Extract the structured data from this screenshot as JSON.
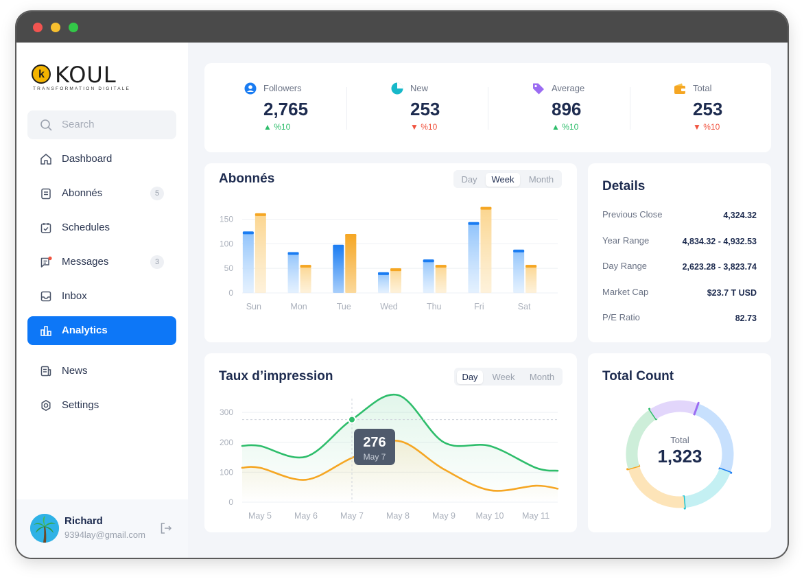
{
  "brand": {
    "name": "KOUL",
    "tagline": "TRANSFORMATION DIGITALE",
    "initial": "k"
  },
  "search": {
    "placeholder": "Search"
  },
  "nav": [
    {
      "label": "Dashboard",
      "badge": null
    },
    {
      "label": "Abonnés",
      "badge": "5"
    },
    {
      "label": "Schedules",
      "badge": null
    },
    {
      "label": "Messages",
      "badge": "3"
    },
    {
      "label": "Inbox",
      "badge": null
    },
    {
      "label": "Analytics",
      "badge": null
    },
    {
      "label": "News",
      "badge": null
    },
    {
      "label": "Settings",
      "badge": null
    }
  ],
  "user": {
    "name": "Richard",
    "email": "9394lay@gmail.com"
  },
  "stats": [
    {
      "label": "Followers",
      "value": "2,765",
      "change": "%10",
      "direction": "up",
      "icon": "user-circle-icon"
    },
    {
      "label": "New",
      "value": "253",
      "change": "%10",
      "direction": "down",
      "icon": "pie-icon"
    },
    {
      "label": "Average",
      "value": "896",
      "direction": "up",
      "change": "%10",
      "icon": "tag-icon"
    },
    {
      "label": "Total",
      "value": "253",
      "change": "%10",
      "direction": "down",
      "icon": "wallet-icon"
    }
  ],
  "colors": {
    "accent": "#0d77f7",
    "up": "#2ebd6b",
    "down": "#f0533f",
    "orange": "#f5a623",
    "green": "#2ebd6b",
    "blue": "#1a7cf2"
  },
  "bar_chart": {
    "title": "Abonnés",
    "tabs": [
      "Day",
      "Week",
      "Month"
    ],
    "active_tab": "Week"
  },
  "details": {
    "title": "Details",
    "rows": [
      {
        "label": "Previous Close",
        "value": "4,324.32"
      },
      {
        "label": "Year Range",
        "value": "4,834.32 - 4,932.53"
      },
      {
        "label": "Day Range",
        "value": "2,623.28 - 3,823.74"
      },
      {
        "label": "Market Cap",
        "value": "$23.7 T USD"
      },
      {
        "label": "P/E Ratio",
        "value": "82.73"
      }
    ]
  },
  "line_chart": {
    "title": "Taux d’impression",
    "tabs": [
      "Day",
      "Week",
      "Month"
    ],
    "active_tab": "Day",
    "tooltip": {
      "value": "276",
      "label": "May 7"
    }
  },
  "total_count": {
    "title": "Total Count",
    "label": "Total",
    "value": "1,323"
  },
  "chart_data": [
    {
      "type": "bar",
      "title": "Abonnés",
      "categories": [
        "Sun",
        "Mon",
        "Tue",
        "Wed",
        "Thu",
        "Fri",
        "Sat"
      ],
      "series": [
        {
          "name": "blue",
          "values": [
            125,
            83,
            98,
            42,
            68,
            144,
            88
          ]
        },
        {
          "name": "orange",
          "values": [
            162,
            57,
            120,
            50,
            57,
            175,
            57
          ]
        }
      ],
      "yticks": [
        0,
        50,
        100,
        150
      ],
      "ylim": [
        0,
        180
      ]
    },
    {
      "type": "line",
      "title": "Taux d’impression",
      "categories": [
        "May 5",
        "May 6",
        "May 7",
        "May 8",
        "May 9",
        "May 10",
        "May 11"
      ],
      "series": [
        {
          "name": "green",
          "values": [
            188,
            152,
            276,
            358,
            200,
            188,
            115
          ]
        },
        {
          "name": "orange",
          "values": [
            115,
            75,
            148,
            205,
            110,
            40,
            55
          ]
        }
      ],
      "yticks": [
        0,
        100,
        200,
        300
      ],
      "ylim": [
        0,
        360
      ]
    },
    {
      "type": "pie",
      "title": "Total Count",
      "total": "1,323",
      "segments": [
        {
          "name": "blue",
          "value": 25
        },
        {
          "name": "cyan",
          "value": 18
        },
        {
          "name": "orange",
          "value": 22
        },
        {
          "name": "green",
          "value": 20
        },
        {
          "name": "purple",
          "value": 15
        }
      ]
    }
  ]
}
